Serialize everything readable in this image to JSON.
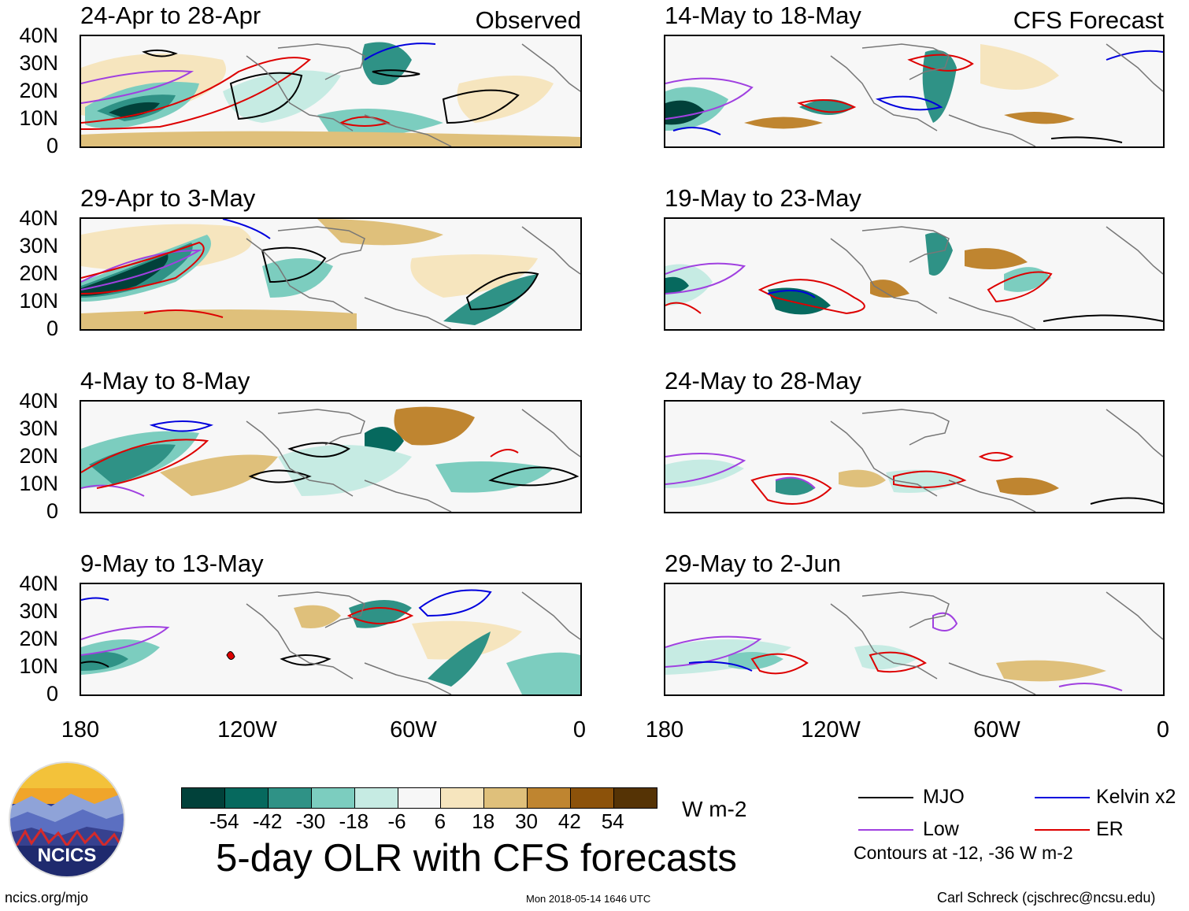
{
  "figure": {
    "title": "5-day OLR with CFS forecasts",
    "observed_label": "Observed",
    "forecast_label": "CFS Forecast",
    "y_ticks": [
      "40N",
      "30N",
      "20N",
      "10N",
      "0"
    ],
    "x_ticks": [
      "180",
      "120W",
      "60W",
      "0"
    ]
  },
  "panels": {
    "observed": [
      {
        "title": "24-Apr to 28-Apr"
      },
      {
        "title": "29-Apr to 3-May"
      },
      {
        "title": "4-May to 8-May"
      },
      {
        "title": "9-May to 13-May"
      }
    ],
    "forecast": [
      {
        "title": "14-May to 18-May"
      },
      {
        "title": "19-May to 23-May"
      },
      {
        "title": "24-May to 28-May"
      },
      {
        "title": "29-May to 2-Jun"
      }
    ]
  },
  "colorbar": {
    "unit": "W m-2",
    "labels": [
      "-54",
      "-42",
      "-30",
      "-18",
      "-6",
      "6",
      "18",
      "30",
      "42",
      "54"
    ],
    "colors": [
      "#01413a",
      "#06695e",
      "#2f9286",
      "#7ccdbf",
      "#c6ebe3",
      "#f7f7f7",
      "#f6e5be",
      "#dfc07b",
      "#bf8530",
      "#8c520a",
      "#553305"
    ]
  },
  "legend": {
    "items": [
      {
        "label": "MJO",
        "color": "#000000"
      },
      {
        "label": "Kelvin x2",
        "color": "#0000dd"
      },
      {
        "label": "Low",
        "color": "#a040e0"
      },
      {
        "label": "ER",
        "color": "#dd0000"
      }
    ],
    "note": "Contours at -12, -36 W m-2"
  },
  "footer": {
    "logo_text": "NCICS",
    "url": "ncics.org/mjo",
    "timestamp": "Mon 2018-05-14 1646 UTC",
    "credit": "Carl Schreck (cjschrec@ncsu.edu)"
  }
}
